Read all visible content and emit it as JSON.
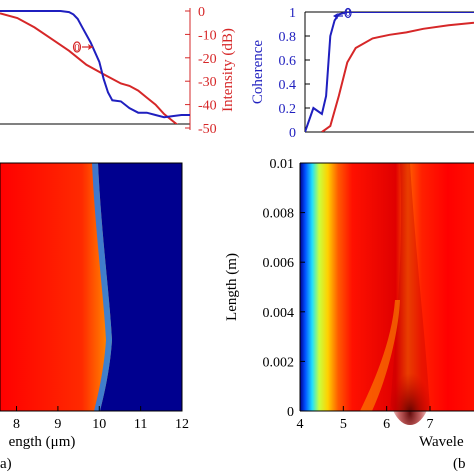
{
  "chart_data": [
    {
      "panel": "top-left",
      "type": "line",
      "ylabel_right": "Intensity (dB)",
      "yticks_right": [
        "0",
        "-10",
        "-20",
        "-30",
        "-40",
        "-50"
      ],
      "ylim_right": [
        -50,
        0
      ],
      "xlim": [
        7.6,
        12
      ],
      "series": [
        {
          "color": "#d62728",
          "axis": "right",
          "x": [
            7.6,
            8.0,
            8.4,
            8.8,
            9.2,
            9.6,
            10.0,
            10.4,
            10.6,
            10.8,
            11.0,
            11.2,
            11.4,
            11.6,
            11.8,
            12.0
          ],
          "y": [
            -1,
            -3,
            -7,
            -12,
            -17,
            -23,
            -27,
            -31,
            -32,
            -34,
            -37,
            -40,
            -44,
            -47,
            -50,
            -52
          ]
        },
        {
          "color": "#1f1fbf",
          "axis": "left",
          "x": [
            7.6,
            8.5,
            9.0,
            9.2,
            9.3,
            9.4,
            9.5,
            9.7,
            9.9,
            10.0,
            10.1,
            10.2,
            10.4,
            10.6,
            10.8,
            11.0,
            11.2,
            11.4,
            11.6,
            11.8,
            12.0
          ],
          "y": [
            1.0,
            1.0,
            1.0,
            0.99,
            0.97,
            0.93,
            0.86,
            0.72,
            0.55,
            0.4,
            0.28,
            0.21,
            0.2,
            0.14,
            0.1,
            0.1,
            0.08,
            0.06,
            0.07,
            0.08,
            0.08
          ]
        }
      ],
      "annotation": {
        "text": "0"
      }
    },
    {
      "panel": "top-right",
      "type": "line",
      "ylabel": "Coherence",
      "yticks": [
        "0",
        "0.2",
        "0.4",
        "0.6",
        "0.8",
        "1"
      ],
      "ylim": [
        0,
        1
      ],
      "xlim": [
        4,
        8
      ],
      "series": [
        {
          "color": "#1f1fbf",
          "x": [
            4.0,
            4.05,
            4.1,
            4.2,
            4.25,
            4.3,
            4.35,
            4.4,
            4.5,
            4.6,
            4.8,
            5.0,
            6.0,
            7.0,
            8.0
          ],
          "y": [
            0.0,
            0.1,
            0.2,
            0.15,
            0.3,
            0.8,
            0.93,
            0.98,
            1.0,
            1.0,
            1.0,
            1.0,
            1.0,
            1.0,
            1.0
          ]
        },
        {
          "color": "#d62728",
          "x": [
            4.2,
            4.3,
            4.4,
            4.5,
            4.6,
            4.8,
            5.0,
            5.2,
            5.4,
            5.7,
            6.0,
            6.3,
            6.5,
            6.7,
            7.0,
            7.3,
            7.6,
            8.0
          ],
          "y": [
            0.0,
            0.05,
            0.3,
            0.58,
            0.7,
            0.78,
            0.81,
            0.83,
            0.86,
            0.89,
            0.91,
            0.94,
            0.96,
            0.95,
            0.93,
            0.9,
            0.93,
            0.95
          ]
        }
      ],
      "annotation": {
        "text": "0"
      }
    },
    {
      "panel": "bottom-left",
      "type": "heatmap",
      "colormap": "jet",
      "xlabel": "ength (μm)",
      "xticks": [
        "8",
        "9",
        "10",
        "11",
        "12"
      ],
      "xlim": [
        7.6,
        12
      ],
      "panel_label": "a)",
      "note": "red at short wavelength fading through yellow/cyan to blue beyond ~10 μm; boundary bulges to ~10.4 μm mid-length"
    },
    {
      "panel": "bottom-right",
      "type": "heatmap",
      "colormap": "jet",
      "ylabel": "Length (m)",
      "yticks": [
        "0",
        "0.002",
        "0.004",
        "0.006",
        "0.008",
        "0.01"
      ],
      "ylim": [
        0,
        0.01
      ],
      "xticks": [
        "4",
        "5",
        "6",
        "7"
      ],
      "xlim": [
        4,
        8
      ],
      "xlabel": "Wavele",
      "panel_label": "(b"
    }
  ]
}
